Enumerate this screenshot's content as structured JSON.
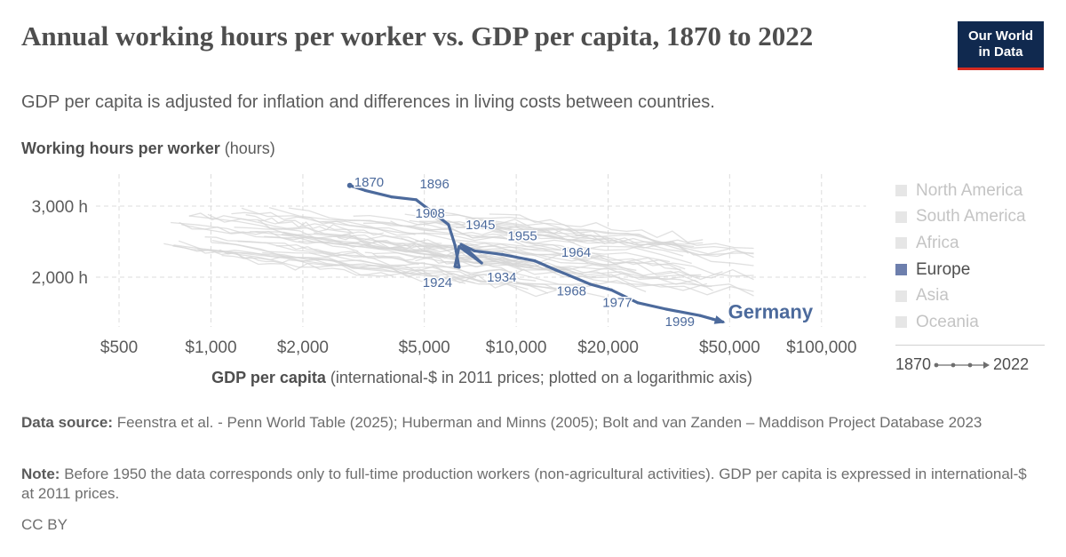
{
  "header": {
    "title": "Annual working hours per worker vs. GDP per capita, 1870 to 2022",
    "subtitle": "GDP per capita is adjusted for inflation and differences in living costs between countries.",
    "logo_line1": "Our World",
    "logo_line2": "in Data"
  },
  "chart_data": {
    "type": "scatter",
    "connected": true,
    "x_scale": "log",
    "y_axis_title": "Working hours per worker",
    "y_axis_unit": "(hours)",
    "x_axis_title": "GDP per capita",
    "x_axis_note": "(international-$ in 2011 prices; plotted on a logarithmic axis)",
    "xlim": [
      420,
      140000
    ],
    "ylim": [
      1300,
      3450
    ],
    "x_ticks": [
      {
        "value": 500,
        "label": "$500"
      },
      {
        "value": 1000,
        "label": "$1,000"
      },
      {
        "value": 2000,
        "label": "$2,000"
      },
      {
        "value": 5000,
        "label": "$5,000"
      },
      {
        "value": 10000,
        "label": "$10,000"
      },
      {
        "value": 20000,
        "label": "$20,000"
      },
      {
        "value": 50000,
        "label": "$50,000"
      },
      {
        "value": 100000,
        "label": "$100,000"
      }
    ],
    "y_ticks": [
      {
        "value": 2000,
        "label": "2,000 h"
      },
      {
        "value": 3000,
        "label": "3,000 h"
      }
    ],
    "grid": true,
    "highlight_color": "#4c6a9c",
    "background_color": "#d6d6d6",
    "series": [
      {
        "name": "Germany",
        "color": "#4c6a9c",
        "points": [
          {
            "year": 1870,
            "x": 2850,
            "y": 3290,
            "label": "1870"
          },
          {
            "year": 1880,
            "x": 3200,
            "y": 3220
          },
          {
            "year": 1890,
            "x": 3900,
            "y": 3130
          },
          {
            "year": 1896,
            "x": 4700,
            "y": 3090,
            "label": "1896"
          },
          {
            "year": 1908,
            "x": 6000,
            "y": 2740,
            "label": "1908"
          },
          {
            "year": 1913,
            "x": 6300,
            "y": 2450
          },
          {
            "year": 1918,
            "x": 6500,
            "y": 2140
          },
          {
            "year": 1924,
            "x": 6300,
            "y": 2150,
            "label": "1924"
          },
          {
            "year": 1929,
            "x": 6500,
            "y": 2430
          },
          {
            "year": 1934,
            "x": 7700,
            "y": 2200,
            "label": "1934"
          },
          {
            "year": 1938,
            "x": 6700,
            "y": 2440
          },
          {
            "year": 1945,
            "x": 6600,
            "y": 2460,
            "label": "1945"
          },
          {
            "year": 1950,
            "x": 7300,
            "y": 2370
          },
          {
            "year": 1955,
            "x": 9000,
            "y": 2320,
            "label": "1955"
          },
          {
            "year": 1960,
            "x": 11500,
            "y": 2230
          },
          {
            "year": 1964,
            "x": 13500,
            "y": 2100,
            "label": "1964"
          },
          {
            "year": 1968,
            "x": 15000,
            "y": 2020,
            "label": "1968"
          },
          {
            "year": 1972,
            "x": 17500,
            "y": 1900
          },
          {
            "year": 1977,
            "x": 20500,
            "y": 1820,
            "label": "1977"
          },
          {
            "year": 1985,
            "x": 25000,
            "y": 1640
          },
          {
            "year": 1992,
            "x": 31000,
            "y": 1550
          },
          {
            "year": 1999,
            "x": 40000,
            "y": 1460,
            "label": "1999"
          },
          {
            "year": 2010,
            "x": 44000,
            "y": 1410
          },
          {
            "year": 2022,
            "x": 47500,
            "y": 1370
          }
        ]
      }
    ],
    "end_label": "Germany",
    "legend": [
      "North America",
      "South America",
      "Africa",
      "Europe",
      "Asia",
      "Oceania"
    ],
    "legend_active": "Europe",
    "legend_placement": "right",
    "timeline_start": "1870",
    "timeline_end": "2022"
  },
  "footer": {
    "source_label": "Data source:",
    "source_text": "Feenstra et al. - Penn World Table (2025); Huberman and Minns (2005); Bolt and van Zanden – Maddison Project Database 2023",
    "note_label": "Note:",
    "note_text": "Before 1950 the data corresponds only to full-time production workers (non-agricultural activities). GDP per capita is expressed in international-$ at 2011 prices.",
    "license": "CC BY"
  }
}
